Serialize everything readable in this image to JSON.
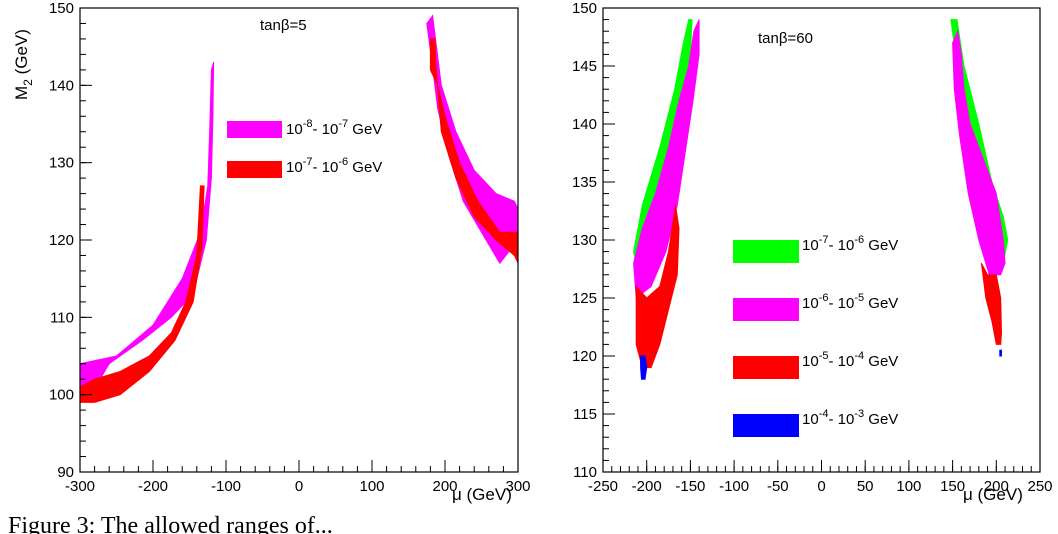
{
  "caption": "Figure 3: The allowed ranges of...",
  "chart_data": [
    {
      "type": "scatter",
      "annotation": "tanβ=5",
      "xlabel": "μ (GeV)",
      "ylabel": "M2 (GeV)",
      "xlim": [
        -300,
        300
      ],
      "ylim": [
        90,
        150
      ],
      "xticks": [
        -300,
        -200,
        -100,
        0,
        100,
        200,
        300
      ],
      "yticks": [
        90,
        100,
        110,
        120,
        130,
        140,
        150
      ],
      "legend_position": "center",
      "series": [
        {
          "name": "10^-8 - 10^-7 GeV",
          "legend_text": [
            "10",
            "-8",
            "- 10",
            "-7",
            " GeV"
          ],
          "color": "#ff00ff",
          "regions": [
            [
              [
                -300,
                104
              ],
              [
                -250,
                105
              ],
              [
                -200,
                109
              ],
              [
                -160,
                115
              ],
              [
                -135,
                121
              ],
              [
                -125,
                127
              ],
              [
                -122,
                135
              ],
              [
                -120,
                142
              ],
              [
                -117,
                143
              ],
              [
                -118,
                136
              ],
              [
                -120,
                128
              ],
              [
                -127,
                120
              ],
              [
                -145,
                113
              ],
              [
                -175,
                110
              ],
              [
                -215,
                107
              ],
              [
                -260,
                104
              ],
              [
                -285,
                100
              ],
              [
                -300,
                99
              ]
            ],
            [
              [
                175,
                148
              ],
              [
                183,
                149
              ],
              [
                195,
                140
              ],
              [
                215,
                134
              ],
              [
                240,
                129
              ],
              [
                270,
                126
              ],
              [
                295,
                125
              ],
              [
                300,
                124
              ],
              [
                300,
                120
              ],
              [
                275,
                117
              ],
              [
                250,
                121
              ],
              [
                225,
                125
              ],
              [
                205,
                131
              ],
              [
                190,
                137
              ],
              [
                182,
                143
              ]
            ]
          ]
        },
        {
          "name": "10^-7 - 10^-6 GeV",
          "legend_text": [
            "10",
            "-7",
            "- 10",
            "-6",
            " GeV"
          ],
          "color": "#ff0000",
          "regions": [
            [
              [
                -300,
                101
              ],
              [
                -280,
                102
              ],
              [
                -245,
                103
              ],
              [
                -205,
                105
              ],
              [
                -175,
                108
              ],
              [
                -155,
                112
              ],
              [
                -140,
                118
              ],
              [
                -135,
                127
              ],
              [
                -130,
                127
              ],
              [
                -133,
                119
              ],
              [
                -145,
                112
              ],
              [
                -170,
                107
              ],
              [
                -205,
                103
              ],
              [
                -245,
                100
              ],
              [
                -280,
                99
              ],
              [
                -300,
                99
              ]
            ],
            [
              [
                180,
                146
              ],
              [
                186,
                146
              ],
              [
                188,
                142
              ],
              [
                195,
                134
              ],
              [
                215,
                128
              ],
              [
                240,
                123
              ],
              [
                270,
                120
              ],
              [
                295,
                118
              ],
              [
                300,
                117
              ],
              [
                300,
                121
              ],
              [
                275,
                121
              ],
              [
                245,
                125
              ],
              [
                220,
                130
              ],
              [
                200,
                136
              ],
              [
                190,
                140
              ],
              [
                180,
                142
              ]
            ]
          ]
        }
      ]
    },
    {
      "type": "scatter",
      "annotation": "tanβ=60",
      "xlabel": "μ (GeV)",
      "ylabel": "",
      "xlim": [
        -250,
        250
      ],
      "ylim": [
        110,
        150
      ],
      "xticks": [
        -250,
        -200,
        -150,
        -100,
        -50,
        0,
        50,
        100,
        150,
        200,
        250
      ],
      "yticks": [
        110,
        115,
        120,
        125,
        130,
        135,
        140,
        145,
        150
      ],
      "legend_position": "center-right",
      "series": [
        {
          "name": "10^-7 - 10^-6 GeV",
          "legend_text": [
            "10",
            "-7",
            "- 10",
            "-6",
            " GeV"
          ],
          "color": "#00ff00",
          "regions": [
            [
              [
                -215,
                129
              ],
              [
                -205,
                133
              ],
              [
                -185,
                138
              ],
              [
                -168,
                143
              ],
              [
                -158,
                147
              ],
              [
                -152,
                149
              ],
              [
                -148,
                149
              ],
              [
                -150,
                146
              ],
              [
                -160,
                141
              ],
              [
                -175,
                136
              ],
              [
                -195,
                131
              ],
              [
                -210,
                127
              ]
            ],
            [
              [
                148,
                149
              ],
              [
                155,
                149
              ],
              [
                163,
                145
              ],
              [
                180,
                140
              ],
              [
                195,
                135
              ],
              [
                208,
                132
              ],
              [
                213,
                130
              ],
              [
                208,
                128
              ],
              [
                200,
                131
              ],
              [
                188,
                135
              ],
              [
                170,
                140
              ],
              [
                155,
                145
              ]
            ]
          ]
        },
        {
          "name": "10^-6 - 10^-5 GeV",
          "legend_text": [
            "10",
            "-6",
            "- 10",
            "-5",
            " GeV"
          ],
          "color": "#ff00ff",
          "regions": [
            [
              [
                -215,
                128
              ],
              [
                -205,
                131
              ],
              [
                -190,
                134
              ],
              [
                -175,
                138
              ],
              [
                -163,
                142
              ],
              [
                -152,
                145
              ],
              [
                -146,
                148
              ],
              [
                -140,
                149
              ],
              [
                -140,
                146
              ],
              [
                -147,
                142
              ],
              [
                -155,
                138
              ],
              [
                -165,
                133
              ],
              [
                -178,
                129
              ],
              [
                -195,
                126
              ],
              [
                -212,
                125
              ]
            ],
            [
              [
                150,
                147
              ],
              [
                156,
                148
              ],
              [
                160,
                146
              ],
              [
                163,
                143
              ],
              [
                170,
                140
              ],
              [
                185,
                137
              ],
              [
                200,
                134
              ],
              [
                208,
                130
              ],
              [
                210,
                128
              ],
              [
                205,
                127
              ],
              [
                192,
                127
              ],
              [
                180,
                130
              ],
              [
                168,
                134
              ],
              [
                158,
                139
              ],
              [
                152,
                143
              ]
            ]
          ]
        },
        {
          "name": "10^-5 - 10^-4 GeV",
          "legend_text": [
            "10",
            "-5",
            "- 10",
            "-4",
            " GeV"
          ],
          "color": "#ff0000",
          "regions": [
            [
              [
                -212,
                126
              ],
              [
                -200,
                125
              ],
              [
                -185,
                126
              ],
              [
                -175,
                129
              ],
              [
                -167,
                133
              ],
              [
                -163,
                131
              ],
              [
                -165,
                127
              ],
              [
                -175,
                124
              ],
              [
                -185,
                121
              ],
              [
                -195,
                119
              ],
              [
                -205,
                119
              ],
              [
                -212,
                121
              ]
            ],
            [
              [
                183,
                128
              ],
              [
                190,
                127
              ],
              [
                200,
                127
              ],
              [
                205,
                125
              ],
              [
                206,
                122
              ],
              [
                205,
                121
              ],
              [
                200,
                121
              ],
              [
                195,
                123
              ],
              [
                188,
                125
              ]
            ]
          ]
        },
        {
          "name": "10^-4 - 10^-3 GeV",
          "legend_text": [
            "10",
            "-4",
            "- 10",
            "-3",
            " GeV"
          ],
          "color": "#0000ff",
          "regions": [
            [
              [
                -207,
                120
              ],
              [
                -202,
                120
              ],
              [
                -200,
                119
              ],
              [
                -202,
                118
              ],
              [
                -206,
                118
              ],
              [
                -207,
                119
              ]
            ],
            [
              [
                204,
                120.5
              ],
              [
                206,
                120.5
              ],
              [
                206,
                120
              ],
              [
                204,
                120
              ]
            ]
          ]
        }
      ]
    }
  ]
}
